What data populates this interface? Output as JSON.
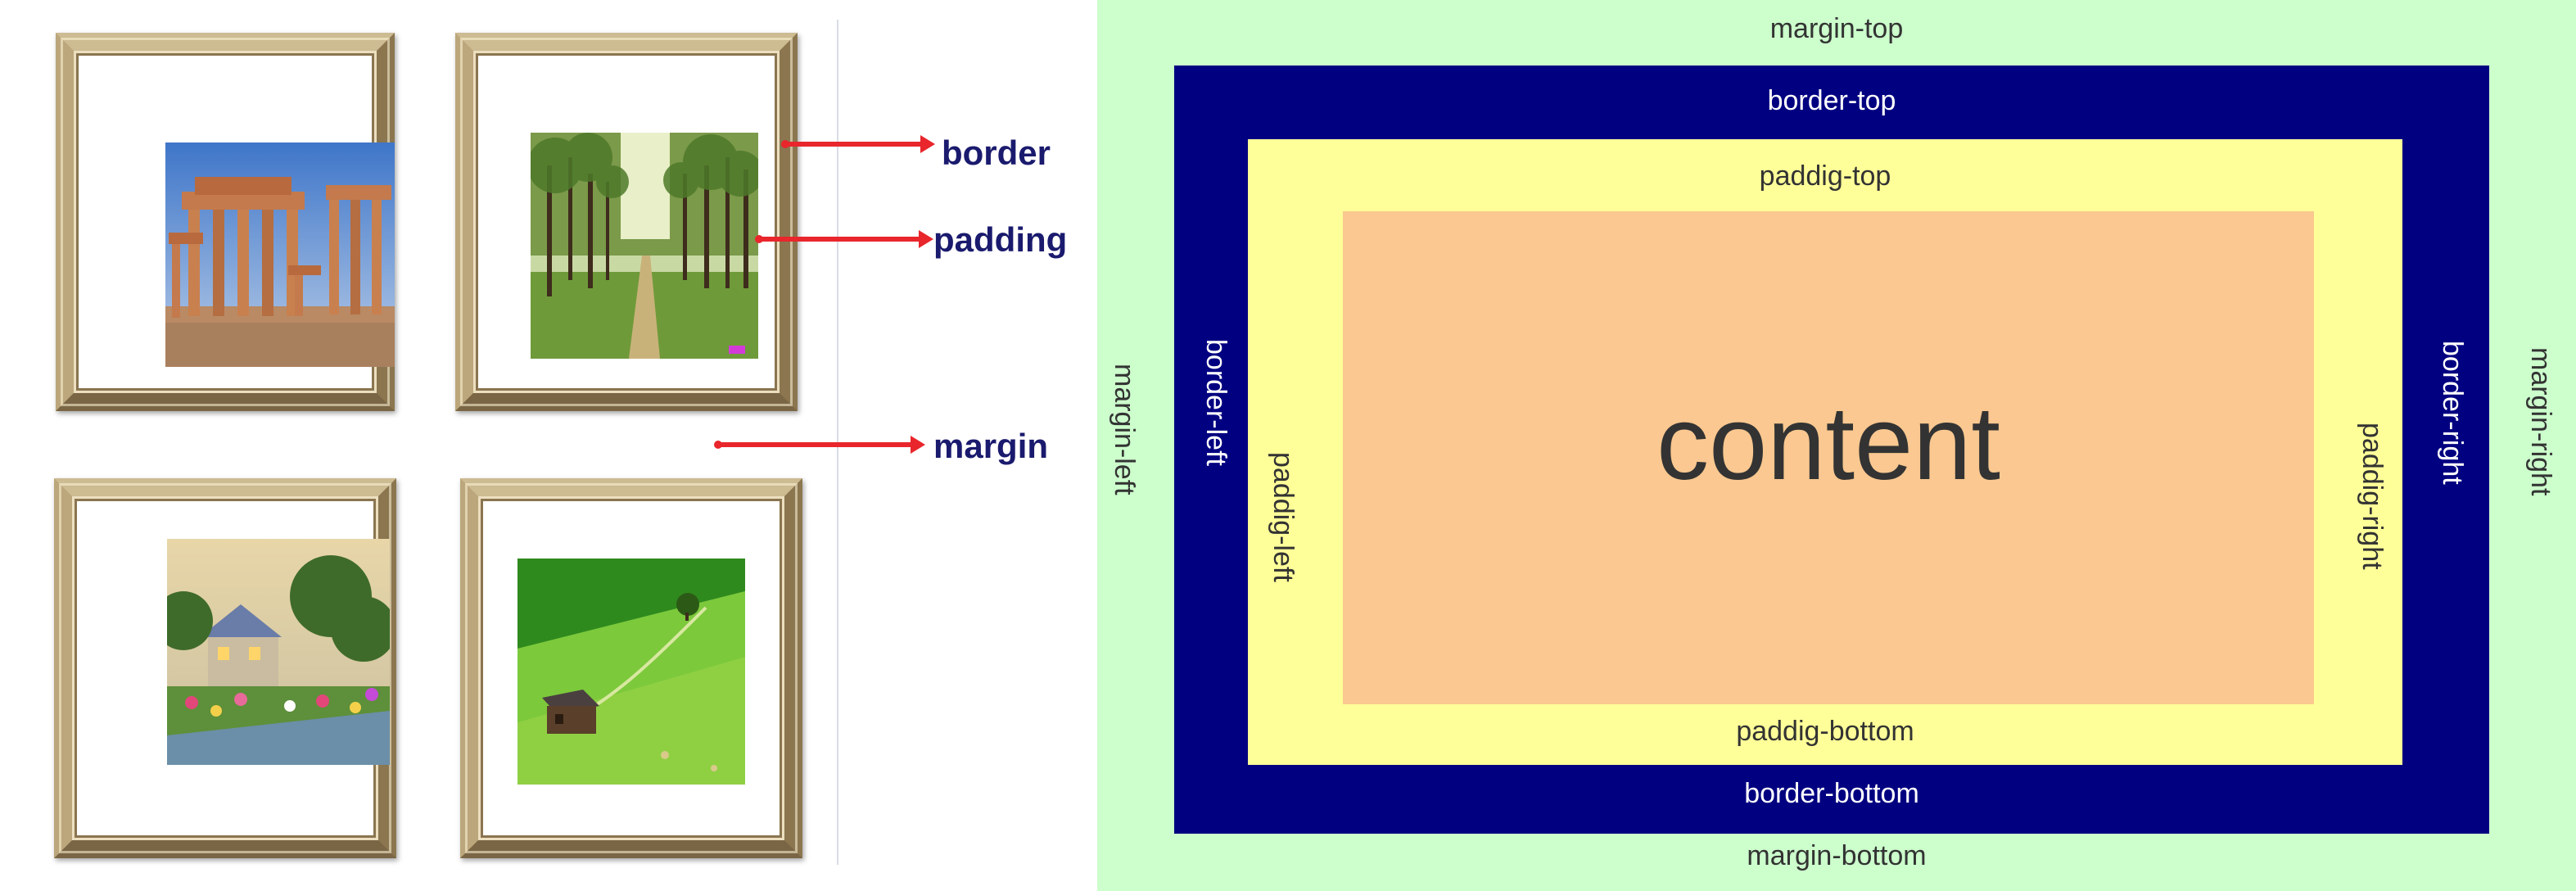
{
  "left": {
    "labels": {
      "border": "border",
      "padding": "padding",
      "margin": "margin"
    },
    "colors": {
      "arrow": "#e8262c",
      "label": "#1a1a6e",
      "frame": "#a7916a"
    },
    "pictures": [
      "ruins-picture",
      "forest-picture",
      "cottage-garden-picture",
      "green-field-cabin-picture"
    ]
  },
  "box_model": {
    "content": "content",
    "margin": {
      "top": "margin-top",
      "bottom": "margin-bottom",
      "left": "margin-left",
      "right": "margin-right"
    },
    "border": {
      "top": "border-top",
      "bottom": "border-bottom",
      "left": "border-left",
      "right": "border-right"
    },
    "padding": {
      "top": "paddig-top",
      "bottom": "paddig-bottom",
      "left": "paddig-left",
      "right": "paddig-right"
    },
    "colors": {
      "margin": "#ccffcc",
      "border": "#000080",
      "padding": "#ffff99",
      "content": "#fac890"
    }
  }
}
